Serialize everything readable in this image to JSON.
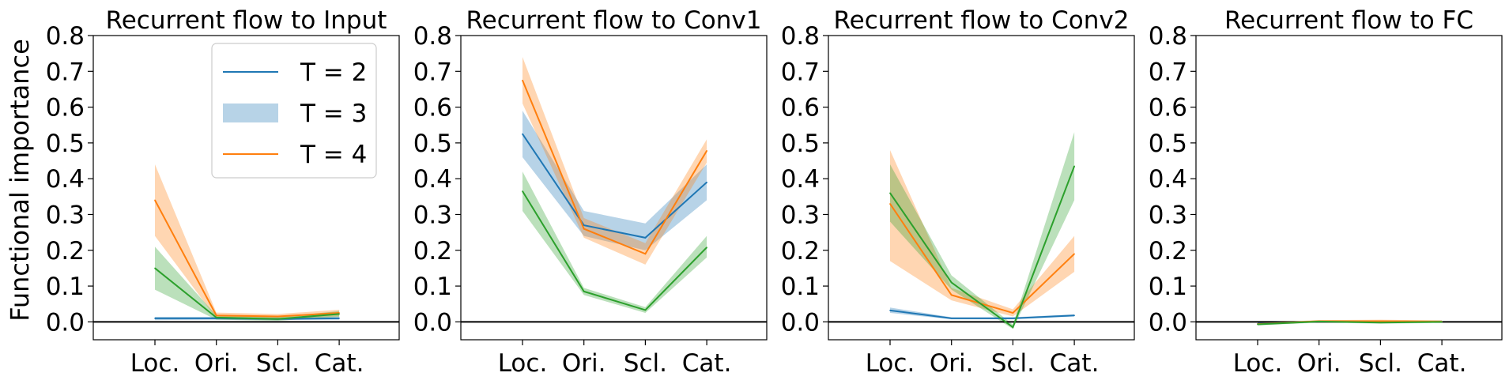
{
  "figure": {
    "ylabel": "Functional importance"
  },
  "legend": {
    "entries": [
      {
        "label": "T = 2",
        "style": "line",
        "color": "#1f77b4"
      },
      {
        "label": "T = 3",
        "style": "band",
        "color": "#1f77b4"
      },
      {
        "label": "T = 4",
        "style": "line",
        "color": "#ff7f0e"
      }
    ]
  },
  "chart_data": [
    {
      "type": "line",
      "title": "Recurrent flow to Input",
      "categories": [
        "Loc.",
        "Ori.",
        "Scl.",
        "Cat."
      ],
      "ylim": [
        -0.05,
        0.8
      ],
      "yticks": [
        0.0,
        0.1,
        0.2,
        0.3,
        0.4,
        0.5,
        0.6,
        0.7,
        0.8
      ],
      "ytick_labels": [
        "0.0",
        "0.1",
        "0.2",
        "0.3",
        "0.4",
        "0.5",
        "0.6",
        "0.7",
        "0.8"
      ],
      "hline": 0.0,
      "series": [
        {
          "color": "#1f77b4",
          "values": [
            0.01,
            0.01,
            0.008,
            0.01
          ],
          "lower": [
            0.005,
            0.006,
            0.005,
            0.006
          ],
          "upper": [
            0.014,
            0.014,
            0.011,
            0.014
          ]
        },
        {
          "color": "#ff7f0e",
          "values": [
            0.34,
            0.018,
            0.015,
            0.025
          ],
          "lower": [
            0.24,
            0.01,
            0.008,
            0.015
          ],
          "upper": [
            0.44,
            0.026,
            0.022,
            0.034
          ]
        },
        {
          "color": "#2ca02c",
          "values": [
            0.15,
            0.012,
            0.008,
            0.022
          ],
          "lower": [
            0.09,
            0.006,
            0.003,
            0.014
          ],
          "upper": [
            0.21,
            0.018,
            0.013,
            0.03
          ]
        }
      ]
    },
    {
      "type": "line",
      "title": "Recurrent flow to Conv1",
      "categories": [
        "Loc.",
        "Ori.",
        "Scl.",
        "Cat."
      ],
      "ylim": [
        -0.05,
        0.8
      ],
      "yticks": [
        0.0,
        0.1,
        0.2,
        0.3,
        0.4,
        0.5,
        0.6,
        0.7,
        0.8
      ],
      "ytick_labels": [
        "0.0",
        "0.1",
        "0.2",
        "0.3",
        "0.4",
        "0.5",
        "0.6",
        "0.7",
        "0.8"
      ],
      "hline": 0.0,
      "series": [
        {
          "color": "#1f77b4",
          "values": [
            0.525,
            0.27,
            0.235,
            0.39
          ],
          "lower": [
            0.46,
            0.24,
            0.2,
            0.34
          ],
          "upper": [
            0.59,
            0.31,
            0.275,
            0.44
          ]
        },
        {
          "color": "#ff7f0e",
          "values": [
            0.675,
            0.26,
            0.19,
            0.478
          ],
          "lower": [
            0.61,
            0.235,
            0.16,
            0.445
          ],
          "upper": [
            0.74,
            0.29,
            0.22,
            0.51
          ]
        },
        {
          "color": "#2ca02c",
          "values": [
            0.365,
            0.085,
            0.033,
            0.208
          ],
          "lower": [
            0.31,
            0.075,
            0.025,
            0.18
          ],
          "upper": [
            0.42,
            0.095,
            0.041,
            0.24
          ]
        }
      ]
    },
    {
      "type": "line",
      "title": "Recurrent flow to Conv2",
      "categories": [
        "Loc.",
        "Ori.",
        "Scl.",
        "Cat."
      ],
      "ylim": [
        -0.05,
        0.8
      ],
      "yticks": [
        0.0,
        0.1,
        0.2,
        0.3,
        0.4,
        0.5,
        0.6,
        0.7,
        0.8
      ],
      "ytick_labels": [
        "0.0",
        "0.1",
        "0.2",
        "0.3",
        "0.4",
        "0.5",
        "0.6",
        "0.7",
        "0.8"
      ],
      "hline": 0.0,
      "series": [
        {
          "color": "#1f77b4",
          "values": [
            0.032,
            0.01,
            0.01,
            0.018
          ],
          "lower": [
            0.025,
            0.007,
            0.007,
            0.015
          ],
          "upper": [
            0.04,
            0.013,
            0.013,
            0.021
          ]
        },
        {
          "color": "#ff7f0e",
          "values": [
            0.33,
            0.075,
            0.025,
            0.19
          ],
          "lower": [
            0.17,
            0.06,
            0.015,
            0.14
          ],
          "upper": [
            0.48,
            0.095,
            0.035,
            0.24
          ]
        },
        {
          "color": "#2ca02c",
          "values": [
            0.36,
            0.11,
            -0.015,
            0.435
          ],
          "lower": [
            0.28,
            0.09,
            -0.02,
            0.34
          ],
          "upper": [
            0.44,
            0.13,
            -0.008,
            0.53
          ]
        }
      ]
    },
    {
      "type": "line",
      "title": "Recurrent flow to FC",
      "categories": [
        "Loc.",
        "Ori.",
        "Scl.",
        "Cat."
      ],
      "ylim": [
        -0.05,
        0.8
      ],
      "yticks": [
        0.0,
        0.1,
        0.2,
        0.3,
        0.4,
        0.5,
        0.6,
        0.7,
        0.8
      ],
      "ytick_labels": [
        "0.0",
        "0.1",
        "0.2",
        "0.3",
        "0.4",
        "0.5",
        "0.6",
        "0.7",
        "0.8"
      ],
      "hline": 0.0,
      "series": [
        {
          "color": "#1f77b4",
          "values": [
            -0.005,
            0.001,
            0.0,
            0.001
          ],
          "lower": [
            -0.008,
            -0.001,
            -0.002,
            -0.001
          ],
          "upper": [
            -0.002,
            0.003,
            0.002,
            0.003
          ]
        },
        {
          "color": "#ff7f0e",
          "values": [
            -0.006,
            0.002,
            0.002,
            0.001
          ],
          "lower": [
            -0.009,
            -0.001,
            -0.002,
            -0.002
          ],
          "upper": [
            -0.003,
            0.005,
            0.006,
            0.004
          ]
        },
        {
          "color": "#2ca02c",
          "values": [
            -0.007,
            0.001,
            -0.002,
            0.0
          ],
          "lower": [
            -0.01,
            -0.002,
            -0.005,
            -0.003
          ],
          "upper": [
            -0.004,
            0.004,
            0.001,
            0.003
          ]
        }
      ]
    }
  ]
}
